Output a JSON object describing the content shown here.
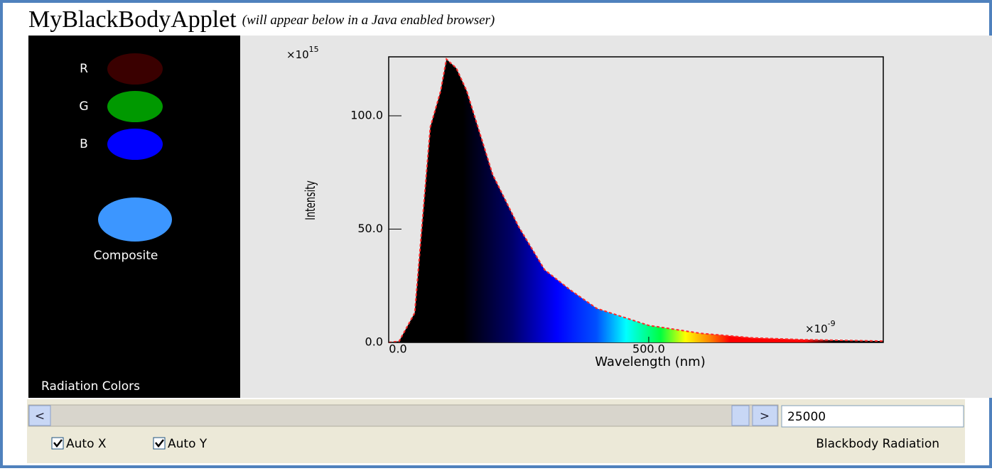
{
  "header": {
    "title": "MyBlackBodyApplet",
    "note": "(will appear below in a Java enabled browser)"
  },
  "colors_panel": {
    "labels": [
      "R",
      "G",
      "B"
    ],
    "composite": "Composite",
    "caption": "Radiation Colors"
  },
  "chart_data": {
    "type": "area",
    "y_label": "Intensity",
    "x_label": "Wavelength (nm)",
    "y_scale": {
      "base": "×10",
      "exponent": "15"
    },
    "x_scale": {
      "base": "×10",
      "exponent": "-9"
    },
    "x": [
      0,
      20,
      50,
      80,
      100,
      111,
      130,
      150,
      200,
      250,
      300,
      350,
      400,
      500,
      600,
      700,
      800,
      951
    ],
    "values": [
      0,
      0.5,
      13,
      95,
      111,
      125,
      121,
      111,
      74,
      51,
      32,
      23,
      15,
      7.5,
      4,
      2,
      1.2,
      0.6
    ],
    "color": "#ff2a2a",
    "xlim": [
      0,
      951
    ],
    "ylim": [
      0,
      126
    ],
    "xticks": [
      {
        "value": 0,
        "label": "0.0"
      },
      {
        "value": 500,
        "label": "500.0"
      }
    ],
    "yticks": [
      {
        "value": 0,
        "label": "0.0"
      },
      {
        "value": 50,
        "label": "50.0"
      },
      {
        "value": 100,
        "label": "100.0"
      }
    ]
  },
  "controls": {
    "temperature": 25000,
    "checkboxes": [
      "Auto X",
      "Auto Y"
    ],
    "status": "Blackbody Radiation"
  }
}
